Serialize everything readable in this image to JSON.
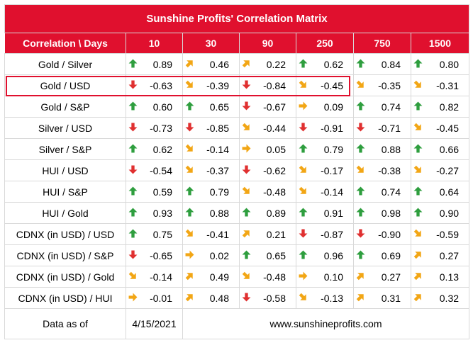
{
  "title": "Sunshine Profits' Correlation Matrix",
  "header": {
    "corner": "Correlation \\ Days",
    "days": [
      "10",
      "30",
      "90",
      "250",
      "750",
      "1500"
    ]
  },
  "rows": [
    {
      "label": "Gold / Silver",
      "cells": [
        {
          "v": "0.89",
          "d": "up"
        },
        {
          "v": "0.46",
          "d": "up-right"
        },
        {
          "v": "0.22",
          "d": "up-right"
        },
        {
          "v": "0.62",
          "d": "up"
        },
        {
          "v": "0.84",
          "d": "up"
        },
        {
          "v": "0.80",
          "d": "up"
        }
      ]
    },
    {
      "label": "Gold / USD",
      "cells": [
        {
          "v": "-0.63",
          "d": "down"
        },
        {
          "v": "-0.39",
          "d": "down-right"
        },
        {
          "v": "-0.84",
          "d": "down"
        },
        {
          "v": "-0.45",
          "d": "down-right"
        },
        {
          "v": "-0.35",
          "d": "down-right"
        },
        {
          "v": "-0.31",
          "d": "down-right"
        }
      ]
    },
    {
      "label": "Gold / S&P",
      "cells": [
        {
          "v": "0.60",
          "d": "up"
        },
        {
          "v": "0.65",
          "d": "up"
        },
        {
          "v": "-0.67",
          "d": "down"
        },
        {
          "v": "0.09",
          "d": "right"
        },
        {
          "v": "0.74",
          "d": "up"
        },
        {
          "v": "0.82",
          "d": "up"
        }
      ]
    },
    {
      "label": "Silver / USD",
      "cells": [
        {
          "v": "-0.73",
          "d": "down"
        },
        {
          "v": "-0.85",
          "d": "down"
        },
        {
          "v": "-0.44",
          "d": "down-right"
        },
        {
          "v": "-0.91",
          "d": "down"
        },
        {
          "v": "-0.71",
          "d": "down"
        },
        {
          "v": "-0.45",
          "d": "down-right"
        }
      ]
    },
    {
      "label": "Silver / S&P",
      "cells": [
        {
          "v": "0.62",
          "d": "up"
        },
        {
          "v": "-0.14",
          "d": "down-right"
        },
        {
          "v": "0.05",
          "d": "right"
        },
        {
          "v": "0.79",
          "d": "up"
        },
        {
          "v": "0.88",
          "d": "up"
        },
        {
          "v": "0.66",
          "d": "up"
        }
      ]
    },
    {
      "label": "HUI / USD",
      "cells": [
        {
          "v": "-0.54",
          "d": "down"
        },
        {
          "v": "-0.37",
          "d": "down-right"
        },
        {
          "v": "-0.62",
          "d": "down"
        },
        {
          "v": "-0.17",
          "d": "down-right"
        },
        {
          "v": "-0.38",
          "d": "down-right"
        },
        {
          "v": "-0.27",
          "d": "down-right"
        }
      ]
    },
    {
      "label": "HUI / S&P",
      "cells": [
        {
          "v": "0.59",
          "d": "up"
        },
        {
          "v": "0.79",
          "d": "up"
        },
        {
          "v": "-0.48",
          "d": "down-right"
        },
        {
          "v": "-0.14",
          "d": "down-right"
        },
        {
          "v": "0.74",
          "d": "up"
        },
        {
          "v": "0.64",
          "d": "up"
        }
      ]
    },
    {
      "label": "HUI / Gold",
      "cells": [
        {
          "v": "0.93",
          "d": "up"
        },
        {
          "v": "0.88",
          "d": "up"
        },
        {
          "v": "0.89",
          "d": "up"
        },
        {
          "v": "0.91",
          "d": "up"
        },
        {
          "v": "0.98",
          "d": "up"
        },
        {
          "v": "0.90",
          "d": "up"
        }
      ]
    },
    {
      "label": "CDNX (in USD) / USD",
      "cells": [
        {
          "v": "0.75",
          "d": "up"
        },
        {
          "v": "-0.41",
          "d": "down-right"
        },
        {
          "v": "0.21",
          "d": "up-right"
        },
        {
          "v": "-0.87",
          "d": "down"
        },
        {
          "v": "-0.90",
          "d": "down"
        },
        {
          "v": "-0.59",
          "d": "down-right"
        }
      ]
    },
    {
      "label": "CDNX (in USD) / S&P",
      "cells": [
        {
          "v": "-0.65",
          "d": "down"
        },
        {
          "v": "0.02",
          "d": "right"
        },
        {
          "v": "0.65",
          "d": "up"
        },
        {
          "v": "0.96",
          "d": "up"
        },
        {
          "v": "0.69",
          "d": "up"
        },
        {
          "v": "0.27",
          "d": "up-right"
        }
      ]
    },
    {
      "label": "CDNX (in USD) / Gold",
      "cells": [
        {
          "v": "-0.14",
          "d": "down-right"
        },
        {
          "v": "0.49",
          "d": "up-right"
        },
        {
          "v": "-0.48",
          "d": "down-right"
        },
        {
          "v": "0.10",
          "d": "right"
        },
        {
          "v": "0.27",
          "d": "up-right"
        },
        {
          "v": "0.13",
          "d": "up-right"
        }
      ]
    },
    {
      "label": "CDNX (in USD) / HUI",
      "cells": [
        {
          "v": "-0.01",
          "d": "right"
        },
        {
          "v": "0.48",
          "d": "up-right"
        },
        {
          "v": "-0.58",
          "d": "down"
        },
        {
          "v": "-0.13",
          "d": "down-right"
        },
        {
          "v": "0.31",
          "d": "up-right"
        },
        {
          "v": "0.32",
          "d": "up-right"
        }
      ]
    }
  ],
  "footer": {
    "label": "Data as of",
    "date": "4/15/2021",
    "site": "www.sunshineprofits.com"
  },
  "highlighted_row": "Gold / USD",
  "colors": {
    "header_bg": "#e0102e",
    "up": "#2e9e3e",
    "down": "#e03030",
    "neutral": "#f2a615"
  }
}
